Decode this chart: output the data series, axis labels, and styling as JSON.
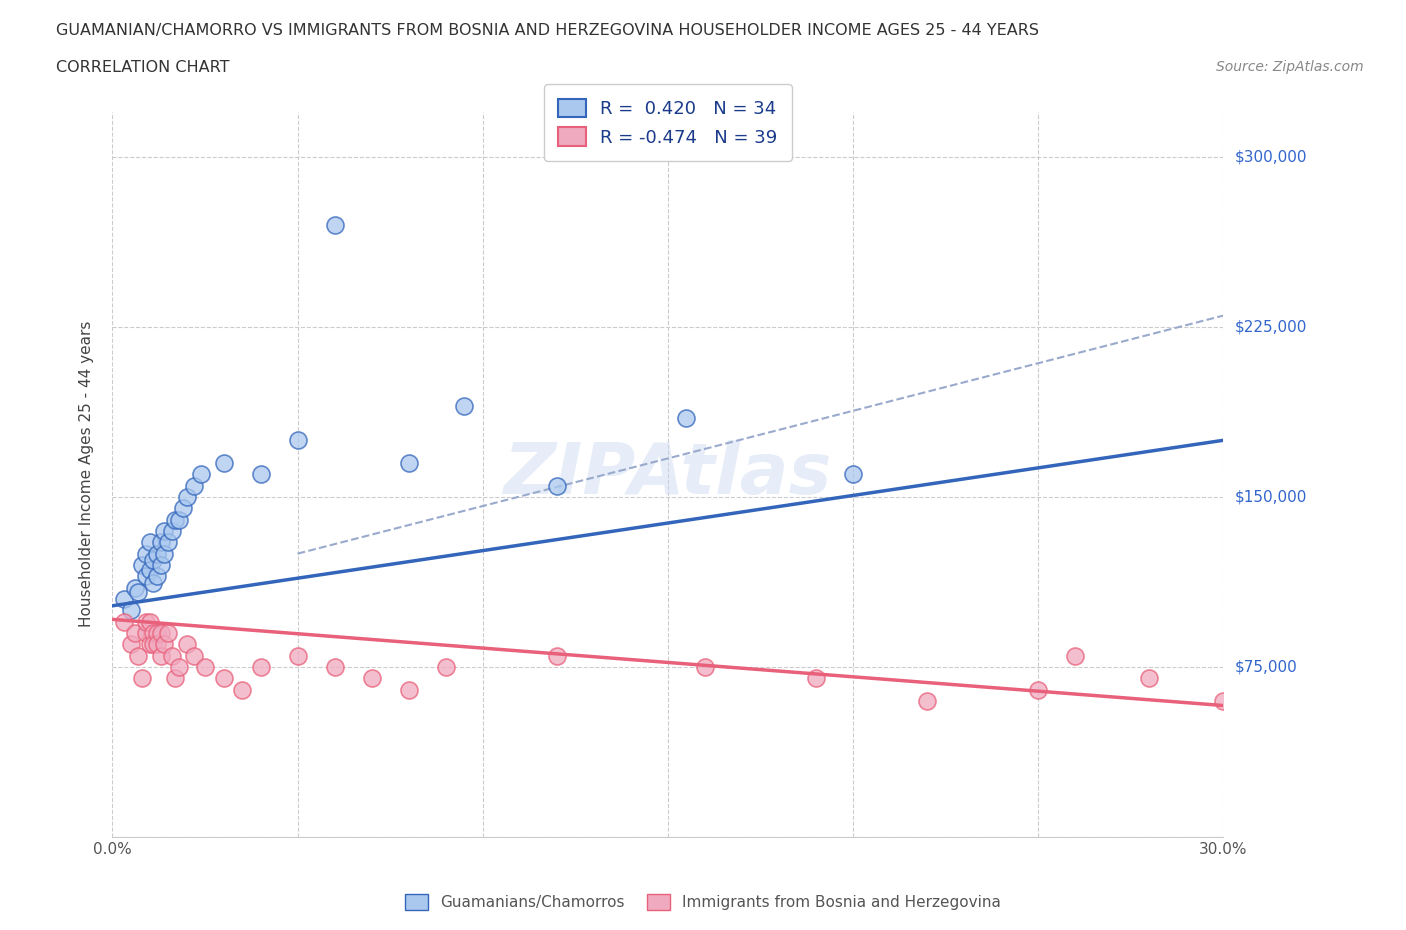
{
  "title_line1": "GUAMANIAN/CHAMORRO VS IMMIGRANTS FROM BOSNIA AND HERZEGOVINA HOUSEHOLDER INCOME AGES 25 - 44 YEARS",
  "title_line2": "CORRELATION CHART",
  "source_text": "Source: ZipAtlas.com",
  "ylabel": "Householder Income Ages 25 - 44 years",
  "xmin": 0.0,
  "xmax": 0.3,
  "ymin": 0,
  "ymax": 320000,
  "yticks": [
    0,
    75000,
    150000,
    225000,
    300000
  ],
  "ytick_labels": [
    "",
    "$75,000",
    "$150,000",
    "$225,000",
    "$300,000"
  ],
  "xticks": [
    0.0,
    0.05,
    0.1,
    0.15,
    0.2,
    0.25,
    0.3
  ],
  "xtick_labels": [
    "0.0%",
    "",
    "",
    "",
    "",
    "",
    "30.0%"
  ],
  "blue_R": 0.42,
  "blue_N": 34,
  "pink_R": -0.474,
  "pink_N": 39,
  "blue_color": "#aac8ee",
  "pink_color": "#f0aac0",
  "blue_line_color": "#3366bb",
  "pink_line_color": "#e8607a",
  "dashed_line_color": "#99aacc",
  "watermark": "ZIPAtlas",
  "blue_scatter_x": [
    0.003,
    0.005,
    0.006,
    0.007,
    0.008,
    0.009,
    0.009,
    0.01,
    0.01,
    0.011,
    0.011,
    0.012,
    0.012,
    0.013,
    0.013,
    0.014,
    0.014,
    0.015,
    0.016,
    0.017,
    0.018,
    0.019,
    0.02,
    0.022,
    0.024,
    0.03,
    0.04,
    0.05,
    0.06,
    0.08,
    0.095,
    0.12,
    0.155,
    0.2
  ],
  "blue_scatter_y": [
    105000,
    100000,
    110000,
    108000,
    120000,
    115000,
    125000,
    118000,
    130000,
    112000,
    122000,
    115000,
    125000,
    120000,
    130000,
    125000,
    135000,
    130000,
    135000,
    140000,
    140000,
    145000,
    150000,
    155000,
    160000,
    165000,
    160000,
    175000,
    270000,
    165000,
    190000,
    155000,
    185000,
    160000
  ],
  "pink_scatter_x": [
    0.003,
    0.005,
    0.006,
    0.007,
    0.008,
    0.009,
    0.009,
    0.01,
    0.01,
    0.011,
    0.011,
    0.012,
    0.012,
    0.013,
    0.013,
    0.014,
    0.015,
    0.016,
    0.017,
    0.018,
    0.02,
    0.022,
    0.025,
    0.03,
    0.035,
    0.04,
    0.05,
    0.06,
    0.07,
    0.08,
    0.09,
    0.12,
    0.16,
    0.19,
    0.22,
    0.25,
    0.26,
    0.28,
    0.3
  ],
  "pink_scatter_y": [
    95000,
    85000,
    90000,
    80000,
    70000,
    90000,
    95000,
    85000,
    95000,
    90000,
    85000,
    90000,
    85000,
    90000,
    80000,
    85000,
    90000,
    80000,
    70000,
    75000,
    85000,
    80000,
    75000,
    70000,
    65000,
    75000,
    80000,
    75000,
    70000,
    65000,
    75000,
    80000,
    75000,
    70000,
    60000,
    65000,
    80000,
    70000,
    60000
  ],
  "blue_line_x0": 0.0,
  "blue_line_y0": 102000,
  "blue_line_x1": 0.3,
  "blue_line_y1": 175000,
  "pink_line_x0": 0.0,
  "pink_line_y0": 96000,
  "pink_line_x1": 0.3,
  "pink_line_y1": 58000,
  "dash_line_x0": 0.05,
  "dash_line_y0": 125000,
  "dash_line_x1": 0.3,
  "dash_line_y1": 230000
}
